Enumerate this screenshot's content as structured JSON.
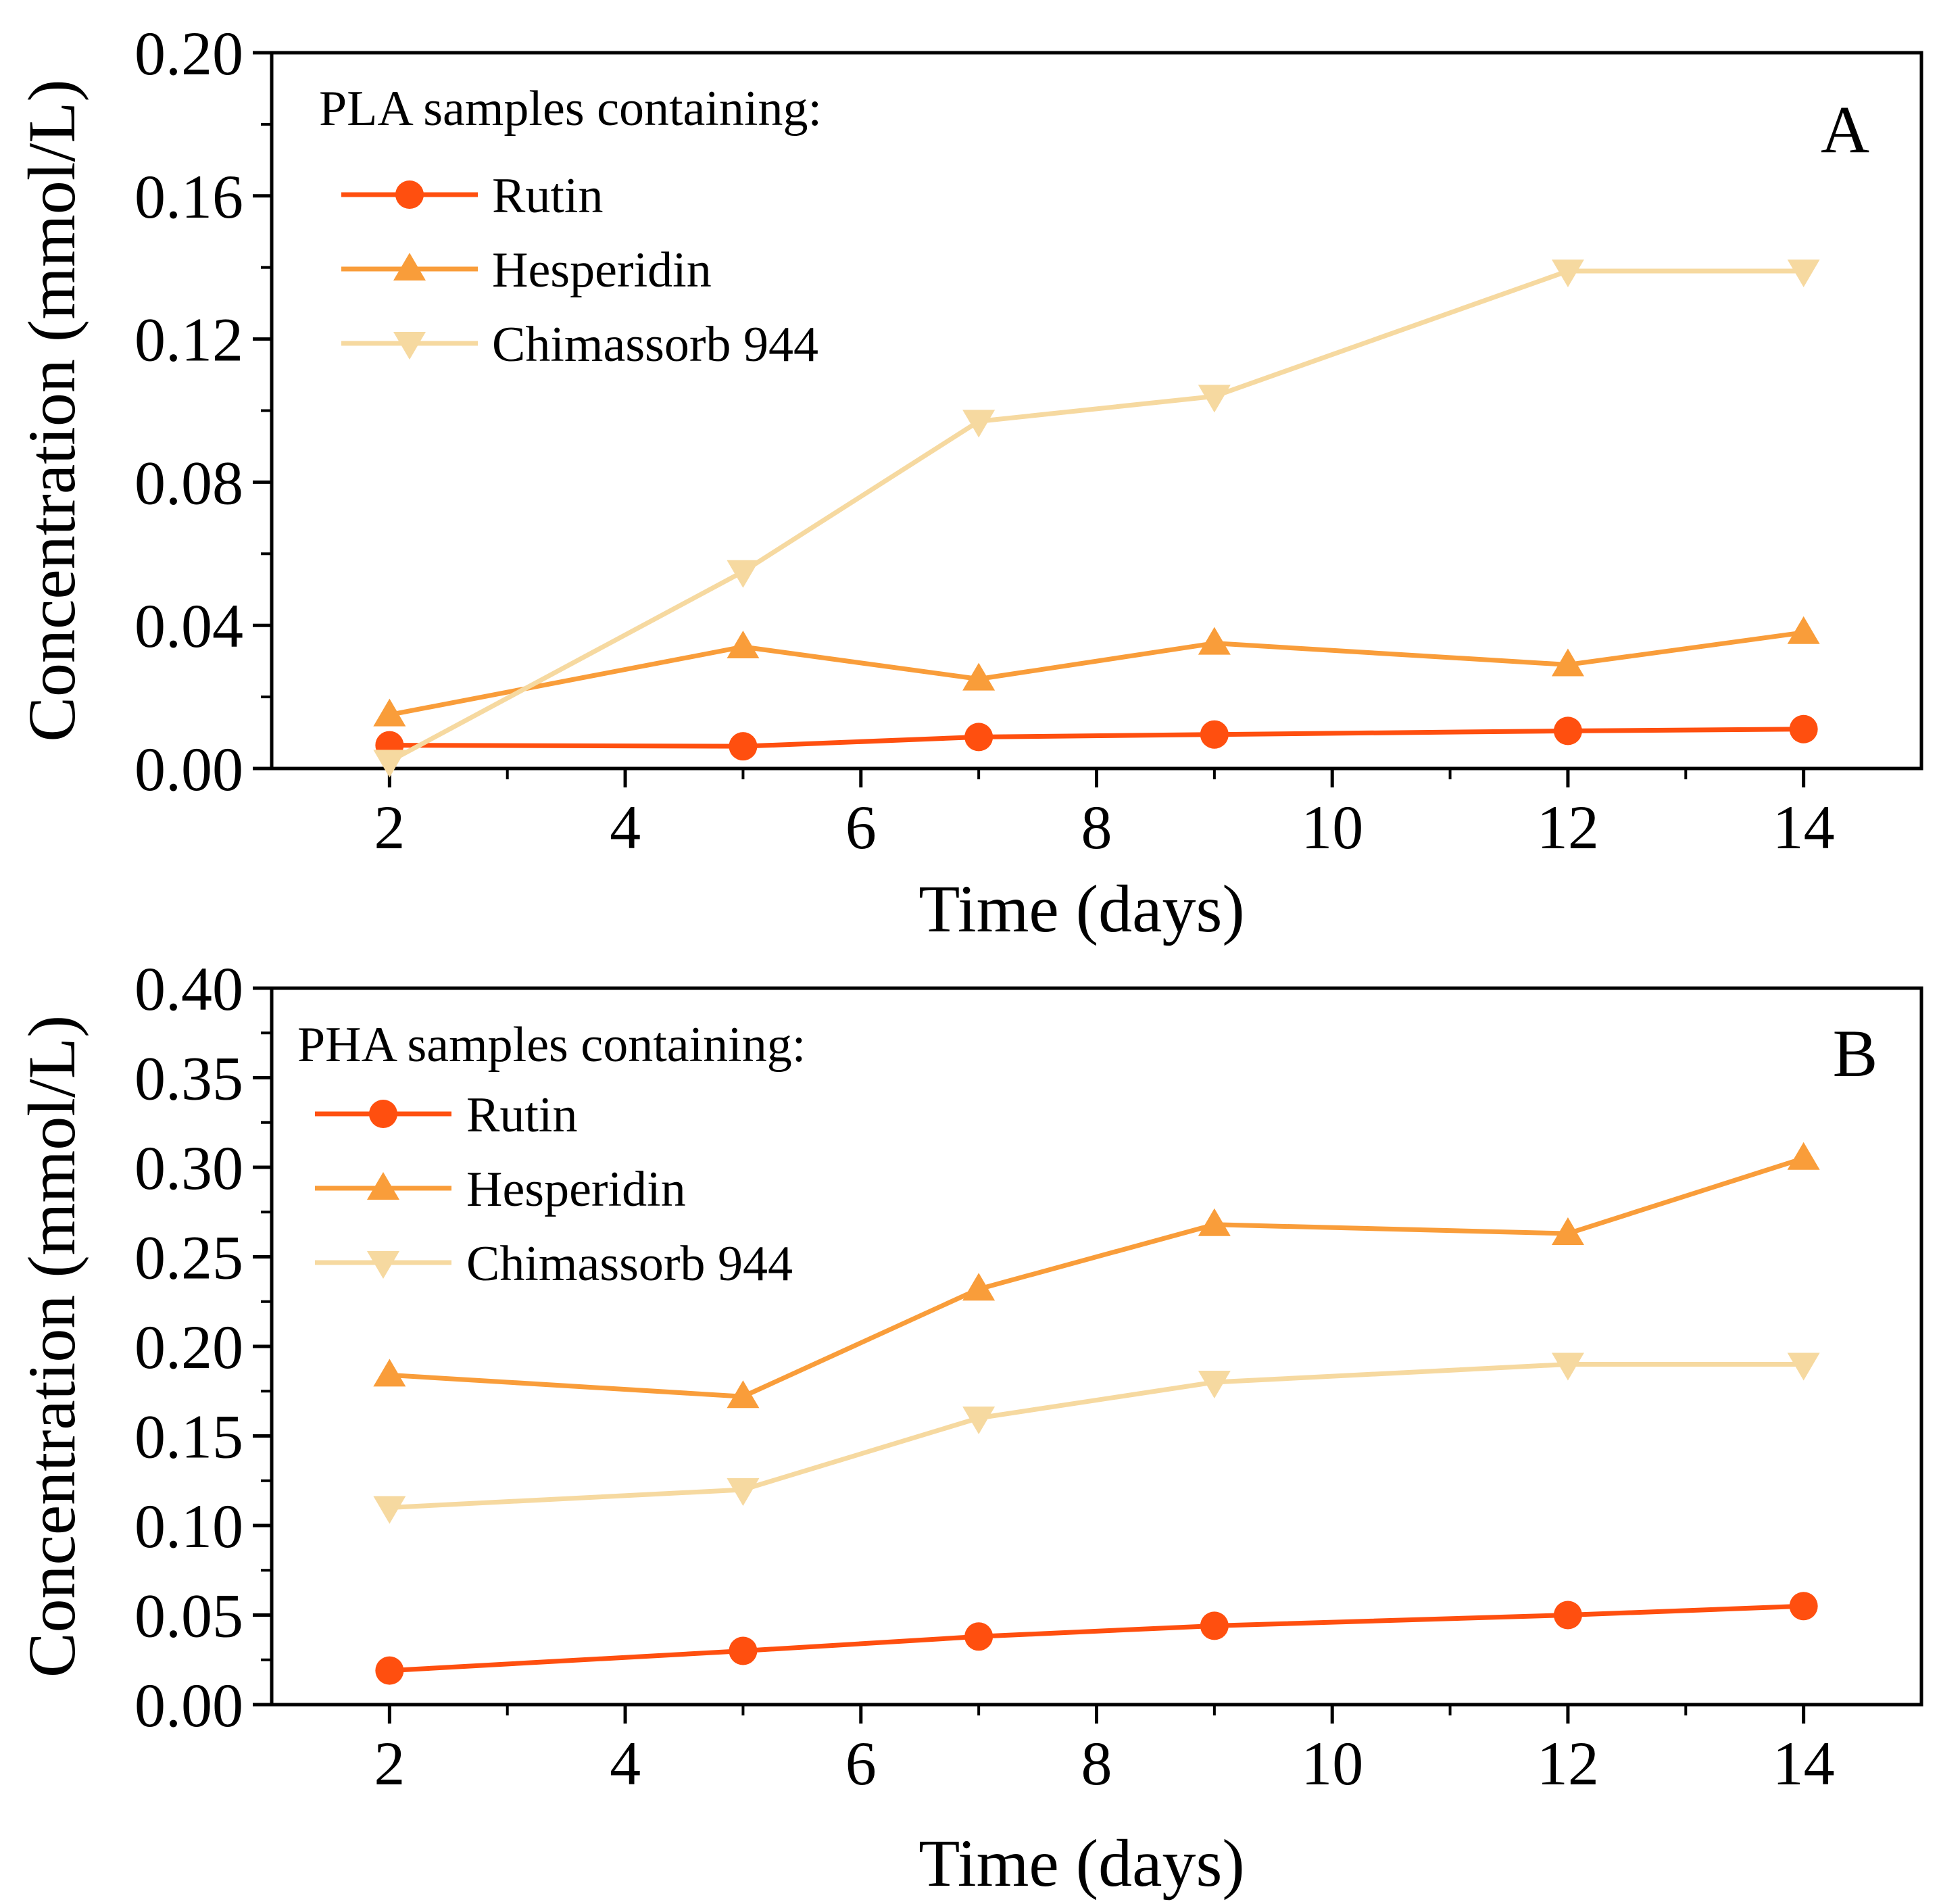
{
  "chart_data": [
    {
      "type": "line",
      "panel_label": "A",
      "legend_title": "PLA samples containing:",
      "xlabel": "Time (days)",
      "ylabel": "Concentration (mmol/L)",
      "xlim": [
        1,
        15
      ],
      "ylim": [
        0.0,
        0.2
      ],
      "xticks": [
        "2",
        "4",
        "6",
        "8",
        "10",
        "12",
        "14"
      ],
      "yticks": [
        "0.00",
        "0.04",
        "0.08",
        "0.12",
        "0.16",
        "0.20"
      ],
      "x": [
        2,
        5,
        7,
        9,
        12,
        14
      ],
      "series": [
        {
          "name": "Rutin",
          "marker": "circle",
          "color": "#FF4F0F",
          "values": [
            0.0065,
            0.0062,
            0.0088,
            0.0095,
            0.0105,
            0.011
          ]
        },
        {
          "name": "Hesperidin",
          "marker": "triangle-up",
          "color": "#F99D3A",
          "values": [
            0.015,
            0.034,
            0.025,
            0.035,
            0.029,
            0.038
          ]
        },
        {
          "name": "Chimassorb 944",
          "marker": "triangle-down",
          "color": "#F6D9A0",
          "values": [
            0.002,
            0.055,
            0.097,
            0.104,
            0.139,
            0.139
          ]
        }
      ]
    },
    {
      "type": "line",
      "panel_label": "B",
      "legend_title": "PHA samples containing:",
      "xlabel": "Time (days)",
      "ylabel": "Concentration (mmol/L)",
      "xlim": [
        1,
        15
      ],
      "ylim": [
        0.0,
        0.4
      ],
      "xticks": [
        "2",
        "4",
        "6",
        "8",
        "10",
        "12",
        "14"
      ],
      "yticks": [
        "0.00",
        "0.05",
        "0.10",
        "0.15",
        "0.20",
        "0.25",
        "0.30",
        "0.35",
        "0.40"
      ],
      "x": [
        2,
        5,
        7,
        9,
        12,
        14
      ],
      "series": [
        {
          "name": "Rutin",
          "marker": "circle",
          "color": "#FF4F0F",
          "values": [
            0.019,
            0.03,
            0.038,
            0.044,
            0.05,
            0.055
          ]
        },
        {
          "name": "Hesperidin",
          "marker": "triangle-up",
          "color": "#F99D3A",
          "values": [
            0.184,
            0.172,
            0.232,
            0.268,
            0.263,
            0.305
          ]
        },
        {
          "name": "Chimassorb 944",
          "marker": "triangle-down",
          "color": "#F6D9A0",
          "values": [
            0.11,
            0.12,
            0.16,
            0.18,
            0.19,
            0.19
          ]
        }
      ]
    }
  ]
}
